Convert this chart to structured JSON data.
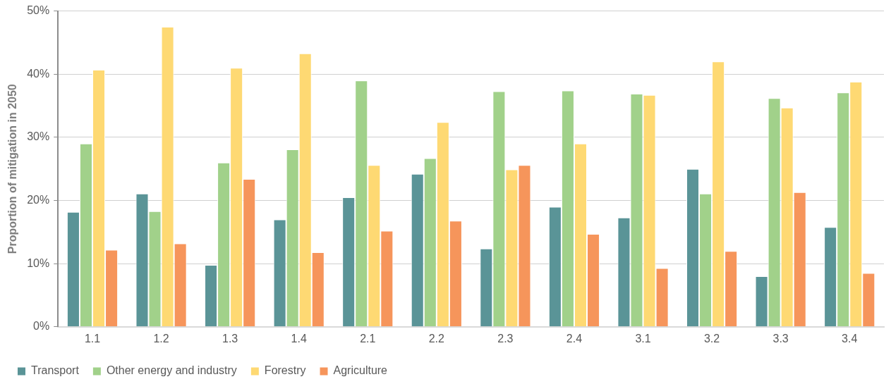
{
  "chart_data": {
    "type": "bar",
    "ylabel": "Proportion of mitigation in 2050",
    "categories": [
      "1.1",
      "1.2",
      "1.3",
      "1.4",
      "2.1",
      "2.2",
      "2.3",
      "2.4",
      "3.1",
      "3.2",
      "3.3",
      "3.4"
    ],
    "series": [
      {
        "name": "Transport",
        "color": "#5a9497",
        "values": [
          18.2,
          21.1,
          9.8,
          17.0,
          20.5,
          24.2,
          12.4,
          19.0,
          17.3,
          25.0,
          8.0,
          15.8
        ]
      },
      {
        "name": "Other energy and industry",
        "color": "#a1d18a",
        "values": [
          29.0,
          18.3,
          26.0,
          28.1,
          39.0,
          26.7,
          37.3,
          37.4,
          36.9,
          21.1,
          36.2,
          37.1
        ]
      },
      {
        "name": "Forestry",
        "color": "#fed973",
        "values": [
          40.7,
          47.5,
          41.0,
          43.3,
          25.6,
          32.4,
          24.9,
          29.0,
          36.7,
          42.0,
          34.7,
          38.8
        ]
      },
      {
        "name": "Agriculture",
        "color": "#f6955b",
        "values": [
          12.2,
          13.2,
          23.4,
          11.8,
          15.2,
          16.8,
          25.6,
          14.7,
          9.3,
          12.0,
          21.3,
          8.5
        ]
      }
    ],
    "ylim": [
      0,
      50
    ],
    "yticks": [
      {
        "value": 0,
        "label": "0%"
      },
      {
        "value": 10,
        "label": "10%"
      },
      {
        "value": 20,
        "label": "20%"
      },
      {
        "value": 30,
        "label": "30%"
      },
      {
        "value": 40,
        "label": "40%"
      },
      {
        "value": 50,
        "label": "50%"
      }
    ],
    "grid": "y",
    "legend": "bottom"
  }
}
